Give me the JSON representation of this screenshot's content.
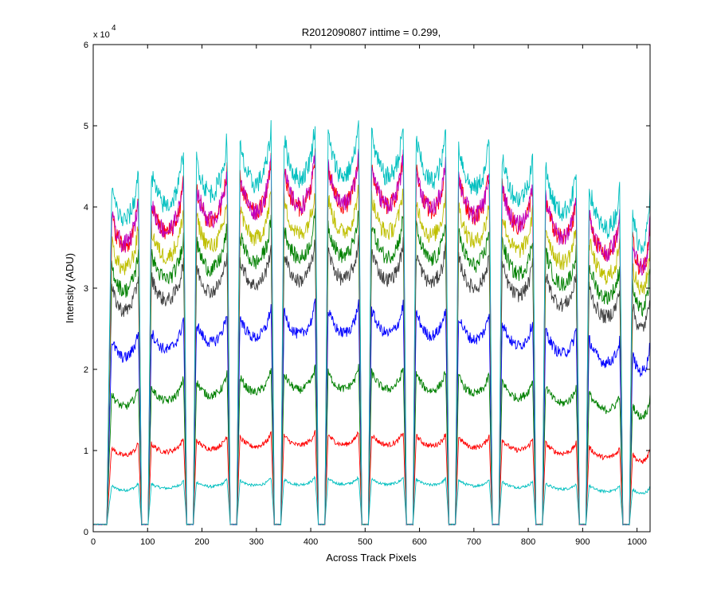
{
  "chart_data": {
    "type": "line",
    "title": "R2012090807 inttime = 0.299,",
    "xlabel": "Across Track Pixels",
    "ylabel": "Intensity (ADU)",
    "y_multiplier_label": "x 10",
    "y_multiplier_exponent": "4",
    "xlim": [
      0,
      1024
    ],
    "ylim": [
      0,
      6
    ],
    "xticks": [
      0,
      100,
      200,
      300,
      400,
      500,
      600,
      700,
      800,
      900,
      1000
    ],
    "yticks": [
      0,
      1,
      2,
      3,
      4,
      5,
      6
    ],
    "grid": false,
    "legend": "none",
    "samples_per_series": 1025,
    "baseline": 0.09,
    "gap_centers": [
      95,
      178,
      258,
      339,
      420,
      500,
      582,
      660,
      740,
      820,
      900,
      980
    ],
    "series": [
      {
        "color": "#00BFBF",
        "level": 0.68
      },
      {
        "color": "#FF0000",
        "level": 1.25
      },
      {
        "color": "#008000",
        "level": 2.05
      },
      {
        "color": "#0000FF",
        "level": 2.85
      },
      {
        "color": "#404040",
        "level": 3.62
      },
      {
        "color": "#008000",
        "level": 3.95
      },
      {
        "color": "#BFBF00",
        "level": 4.3
      },
      {
        "color": "#FF0000",
        "level": 4.68
      },
      {
        "color": "#BF00BF",
        "level": 4.7
      },
      {
        "color": "#00BFBF",
        "level": 5.1
      }
    ]
  }
}
